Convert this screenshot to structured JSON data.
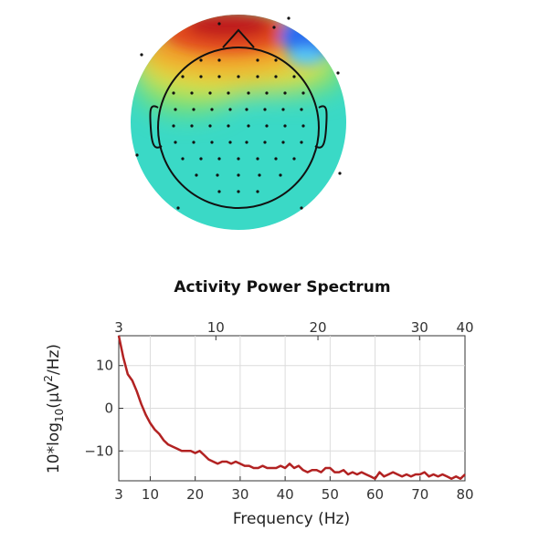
{
  "topomap": {
    "colormap": "jet",
    "background_color": "#3ad9c6",
    "hot_spot_color": "#c01a1a",
    "cold_spot_color": "#2a6df0"
  },
  "chart_data": {
    "type": "line",
    "title": "Activity Power Spectrum",
    "xlabel": "Frequency (Hz)",
    "ylabel_parts": [
      "10*log",
      "10",
      "(μV",
      "2",
      "/Hz)"
    ],
    "xlim": [
      3,
      80
    ],
    "ylim": [
      -17,
      17
    ],
    "x_ticks_bottom": [
      3,
      10,
      20,
      30,
      40,
      50,
      60,
      70,
      80
    ],
    "x_ticks_top_values": [
      3,
      24.6,
      47.3,
      69.9,
      80
    ],
    "x_ticks_top_labels": [
      "3",
      "10",
      "20",
      "30",
      "40"
    ],
    "y_ticks": [
      10,
      0,
      -10
    ],
    "grid": true,
    "line_color": "#b22222",
    "x": [
      3,
      4,
      5,
      6,
      7,
      8,
      9,
      10,
      11,
      12,
      13,
      14,
      15,
      16,
      17,
      18,
      19,
      20,
      21,
      22,
      23,
      24,
      25,
      26,
      27,
      28,
      29,
      30,
      31,
      32,
      33,
      34,
      35,
      36,
      37,
      38,
      39,
      40,
      41,
      42,
      43,
      44,
      45,
      46,
      47,
      48,
      49,
      50,
      51,
      52,
      53,
      54,
      55,
      56,
      57,
      58,
      59,
      60,
      61,
      62,
      63,
      64,
      65,
      66,
      67,
      68,
      69,
      70,
      71,
      72,
      73,
      74,
      75,
      76,
      77,
      78,
      79,
      80
    ],
    "values": [
      17,
      12,
      8,
      6.5,
      4,
      1,
      -1.5,
      -3.5,
      -5,
      -6,
      -7.5,
      -8.5,
      -9,
      -9.5,
      -10,
      -10,
      -10,
      -10.5,
      -10,
      -11,
      -12,
      -12.5,
      -13,
      -12.5,
      -12.5,
      -13,
      -12.5,
      -13,
      -13.5,
      -13.5,
      -14,
      -14,
      -13.5,
      -14,
      -14,
      -14,
      -13.5,
      -14,
      -13,
      -14,
      -13.5,
      -14.5,
      -15,
      -14.5,
      -14.5,
      -15,
      -14,
      -14,
      -15,
      -15,
      -14.5,
      -15.5,
      -15,
      -15.5,
      -15,
      -15.5,
      -16,
      -16.5,
      -15,
      -16,
      -15.5,
      -15,
      -15.5,
      -16,
      -15.5,
      -16,
      -15.5,
      -15.5,
      -15,
      -16,
      -15.5,
      -16,
      -15.5,
      -16,
      -16.5,
      -16,
      -16.5,
      -15.5
    ]
  }
}
